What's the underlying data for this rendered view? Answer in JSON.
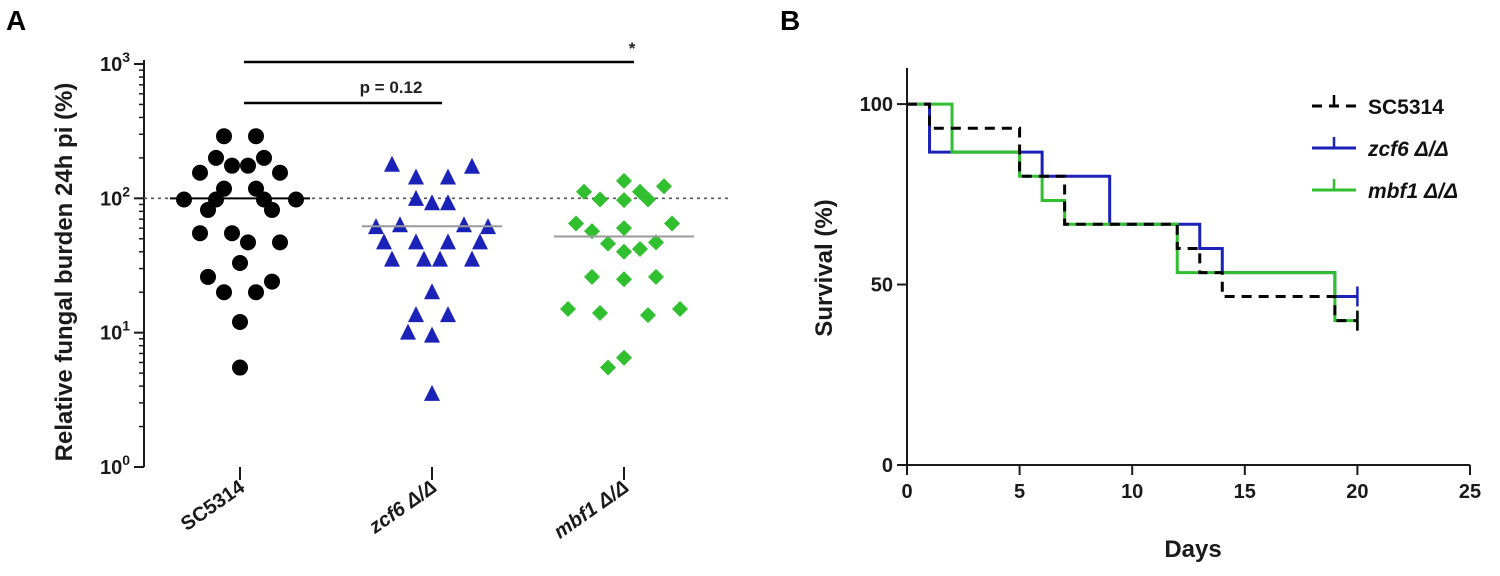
{
  "chart_data": [
    {
      "panel": "A",
      "type": "scatter",
      "ylabel": "Relative fungal burden 24h pi (%)",
      "yscale": "log",
      "ylim": [
        1,
        1000
      ],
      "yticks": [
        {
          "value": 1,
          "base": "10",
          "exp": "0"
        },
        {
          "value": 10,
          "base": "10",
          "exp": "1"
        },
        {
          "value": 100,
          "base": "10",
          "exp": "2"
        },
        {
          "value": 1000,
          "base": "10",
          "exp": "3"
        }
      ],
      "reference_line": 100,
      "categories": [
        {
          "label": "SC5314",
          "italic": false
        },
        {
          "label": "zcf6 Δ/Δ",
          "italic": true
        },
        {
          "label": "mbf1 Δ/Δ",
          "italic": true
        }
      ],
      "series": [
        {
          "name": "SC5314",
          "marker": "circle",
          "color": "#000000",
          "median": 100,
          "values": [
            290,
            290,
            200,
            200,
            175,
            175,
            155,
            155,
            118,
            118,
            98,
            98,
            98,
            98,
            82,
            82,
            55,
            55,
            47,
            47,
            33,
            26,
            24,
            20,
            20,
            12,
            5.5
          ],
          "offsets": [
            -1,
            1,
            -1.5,
            1.5,
            -0.5,
            0.5,
            -2.5,
            2.5,
            -1,
            1,
            -3.5,
            -1.5,
            1.5,
            3.5,
            -2,
            2,
            -2.5,
            -0.5,
            0.5,
            2.5,
            0,
            -2,
            2,
            -1,
            1,
            0,
            0
          ]
        },
        {
          "name": "zcf6 Δ/Δ",
          "marker": "triangle",
          "color": "#1a22b8",
          "median": 62,
          "values": [
            178,
            172,
            143,
            143,
            99,
            92,
            92,
            63,
            63,
            61,
            61,
            47,
            47,
            47,
            47,
            35,
            35,
            35,
            35,
            20,
            13.5,
            13.5,
            10,
            9.5,
            3.5
          ],
          "offsets": [
            -2.5,
            2.5,
            -1,
            1,
            -1,
            0,
            1,
            -2,
            2,
            -3.5,
            3.5,
            -3,
            -1,
            1,
            3,
            -2.5,
            -0.5,
            0.5,
            2.5,
            0,
            -1,
            1,
            -1.5,
            0,
            0
          ]
        },
        {
          "name": "mbf1 Δ/Δ",
          "marker": "diamond",
          "color": "#2fbf2f",
          "median": 52,
          "values": [
            135,
            123,
            112,
            112,
            98,
            98,
            97,
            65,
            65,
            60,
            57,
            47,
            46,
            42,
            40,
            26,
            26,
            25,
            15,
            15,
            14,
            13.5,
            6.5,
            5.5
          ],
          "offsets": [
            0,
            2.5,
            -2.5,
            1,
            -1.5,
            1.5,
            0,
            -3,
            3,
            0,
            -2,
            2,
            -1,
            1,
            0,
            -2,
            2,
            0,
            -3.5,
            3.5,
            -1.5,
            1.5,
            0,
            -1
          ]
        }
      ],
      "comparisons": [
        {
          "from": "SC5314",
          "to": "zcf6 Δ/Δ",
          "label": "p = 0.12"
        },
        {
          "from": "SC5314",
          "to": "mbf1 Δ/Δ",
          "label": "*"
        }
      ]
    },
    {
      "panel": "B",
      "type": "line",
      "step": true,
      "xlabel": "Days",
      "ylabel": "Survival (%)",
      "xlim": [
        0,
        25
      ],
      "ylim": [
        0,
        110
      ],
      "xticks": [
        0,
        5,
        10,
        15,
        20,
        25
      ],
      "yticks": [
        0,
        50,
        100
      ],
      "legend": "top-right",
      "series": [
        {
          "name": "SC5314",
          "italic": false,
          "color": "#000000",
          "dash": true,
          "steps": [
            [
              0,
              100
            ],
            [
              1,
              93.3
            ],
            [
              5,
              80
            ],
            [
              7,
              66.7
            ],
            [
              12,
              60
            ],
            [
              13,
              53.3
            ],
            [
              14,
              46.7
            ],
            [
              19,
              40
            ],
            [
              20,
              40
            ]
          ],
          "censored": [
            [
              20,
              40
            ]
          ]
        },
        {
          "name": "zcf6 Δ/Δ",
          "italic": true,
          "color": "#1a22b8",
          "dash": false,
          "steps": [
            [
              0,
              100
            ],
            [
              1,
              86.7
            ],
            [
              6,
              80
            ],
            [
              9,
              66.7
            ],
            [
              13,
              60
            ],
            [
              14,
              53.3
            ],
            [
              19,
              46.7
            ],
            [
              20,
              46.7
            ]
          ],
          "censored": [
            [
              20,
              46.7
            ]
          ]
        },
        {
          "name": "mbf1 Δ/Δ",
          "italic": true,
          "color": "#2fbf2f",
          "dash": false,
          "steps": [
            [
              0,
              100
            ],
            [
              2,
              86.7
            ],
            [
              5,
              80
            ],
            [
              6,
              73.3
            ],
            [
              7,
              66.7
            ],
            [
              12,
              53.3
            ],
            [
              19,
              40
            ],
            [
              20,
              40
            ]
          ],
          "censored": [
            [
              20,
              40
            ]
          ]
        }
      ]
    }
  ],
  "panel_labels": {
    "a": "A",
    "b": "B"
  }
}
